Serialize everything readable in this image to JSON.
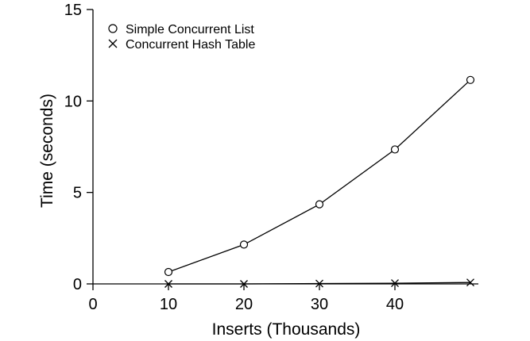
{
  "chart_data": {
    "type": "line",
    "title": "",
    "xlabel": "Inserts (Thousands)",
    "ylabel": "Time (seconds)",
    "xlim": [
      0,
      50
    ],
    "ylim": [
      0,
      15
    ],
    "xticks": [
      0,
      10,
      20,
      30,
      40
    ],
    "yticks": [
      0,
      5,
      10,
      15
    ],
    "grid": false,
    "legend_position": "top-left",
    "series": [
      {
        "name": "Simple Concurrent List",
        "marker": "circle",
        "x": [
          10,
          20,
          30,
          40,
          50
        ],
        "values": [
          0.65,
          2.15,
          4.35,
          7.35,
          11.15
        ]
      },
      {
        "name": "Concurrent Hash Table",
        "marker": "x",
        "x": [
          10,
          20,
          30,
          40,
          50
        ],
        "values": [
          0.0,
          0.0,
          0.02,
          0.04,
          0.08
        ]
      }
    ]
  }
}
